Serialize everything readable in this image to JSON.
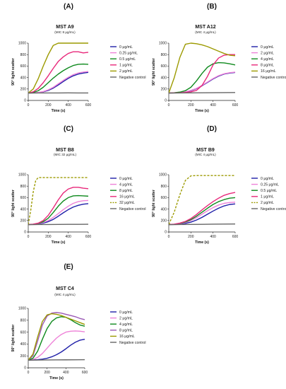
{
  "chart_data": [
    {
      "type": "line",
      "panel_label": "(A)",
      "title": "MST A9",
      "subtitle": "(MIC 8 μg/mL)",
      "xlabel": "Time (s)",
      "ylabel": "90° light scatter",
      "xlim": [
        0,
        600
      ],
      "ylim": [
        0,
        1000
      ],
      "xticks": [
        "0",
        "200",
        "400",
        "600"
      ],
      "yticks": [
        "0",
        "200",
        "400",
        "600",
        "800",
        "1000"
      ],
      "series": [
        {
          "name": "0 μg/mL",
          "color": "#1f1fa8",
          "dashed": false,
          "x": [
            0,
            50,
            100,
            150,
            200,
            250,
            300,
            350,
            400,
            450,
            500,
            550,
            600
          ],
          "y": [
            130,
            132,
            138,
            150,
            175,
            215,
            270,
            330,
            385,
            430,
            460,
            478,
            490
          ]
        },
        {
          "name": "0.25 μg/mL",
          "color": "#ee82d8",
          "dashed": false,
          "x": [
            0,
            50,
            100,
            150,
            200,
            250,
            300,
            350,
            400,
            450,
            500,
            550,
            600
          ],
          "y": [
            130,
            133,
            140,
            155,
            185,
            230,
            290,
            350,
            405,
            450,
            480,
            495,
            505
          ]
        },
        {
          "name": "0.5 μg/mL",
          "color": "#0f8a1e",
          "dashed": false,
          "x": [
            0,
            50,
            100,
            150,
            200,
            250,
            300,
            350,
            400,
            450,
            500,
            550,
            600
          ],
          "y": [
            130,
            140,
            170,
            230,
            310,
            390,
            460,
            520,
            570,
            610,
            630,
            635,
            630
          ]
        },
        {
          "name": "1 μg/mL",
          "color": "#e8287a",
          "dashed": false,
          "x": [
            0,
            50,
            100,
            150,
            200,
            250,
            300,
            350,
            400,
            450,
            500,
            550,
            600
          ],
          "y": [
            130,
            150,
            210,
            310,
            430,
            560,
            680,
            760,
            820,
            850,
            850,
            830,
            840
          ]
        },
        {
          "name": "2 μg/mL",
          "color": "#9c9a00",
          "dashed": false,
          "x": [
            0,
            50,
            100,
            150,
            200,
            250,
            300,
            350,
            400,
            450,
            500,
            550,
            600
          ],
          "y": [
            130,
            200,
            380,
            600,
            800,
            960,
            1000,
            1000,
            1000,
            1000,
            1000,
            1000,
            1000
          ]
        },
        {
          "name": "Negative control",
          "color": "#666666",
          "dashed": false,
          "x": [
            0,
            100,
            200,
            300,
            400,
            500,
            600
          ],
          "y": [
            128,
            130,
            131,
            130,
            132,
            131,
            130
          ]
        }
      ]
    },
    {
      "type": "line",
      "panel_label": "(B)",
      "title": "MST A12",
      "subtitle": "(MIC 4 μg/mL)",
      "xlabel": "Time (s)",
      "ylabel": "90° light scatter",
      "xlim": [
        0,
        600
      ],
      "ylim": [
        0,
        1000
      ],
      "xticks": [
        "0",
        "200",
        "400",
        "600"
      ],
      "yticks": [
        "0",
        "200",
        "400",
        "600",
        "800",
        "1000"
      ],
      "series": [
        {
          "name": "0 μg/mL",
          "color": "#1f1fa8",
          "dashed": false,
          "x": [
            0,
            50,
            100,
            150,
            200,
            250,
            300,
            350,
            400,
            450,
            500,
            550,
            600
          ],
          "y": [
            130,
            132,
            136,
            148,
            170,
            205,
            255,
            315,
            375,
            425,
            460,
            478,
            488
          ]
        },
        {
          "name": "2 μg/mL",
          "color": "#ee82d8",
          "dashed": false,
          "x": [
            0,
            50,
            100,
            150,
            200,
            250,
            300,
            350,
            400,
            450,
            500,
            550,
            600
          ],
          "y": [
            130,
            132,
            137,
            150,
            175,
            210,
            262,
            322,
            382,
            432,
            466,
            484,
            494
          ]
        },
        {
          "name": "4 μg/mL",
          "color": "#0f8a1e",
          "dashed": false,
          "x": [
            0,
            50,
            100,
            150,
            200,
            250,
            300,
            350,
            400,
            450,
            500,
            550,
            600
          ],
          "y": [
            130,
            135,
            145,
            170,
            230,
            340,
            470,
            580,
            640,
            660,
            655,
            640,
            620
          ]
        },
        {
          "name": "8 μg/mL",
          "color": "#e8287a",
          "dashed": false,
          "x": [
            0,
            50,
            100,
            150,
            200,
            250,
            300,
            350,
            400,
            450,
            500,
            550,
            600
          ],
          "y": [
            130,
            132,
            134,
            140,
            150,
            175,
            260,
            420,
            620,
            740,
            790,
            800,
            800
          ]
        },
        {
          "name": "16 μg/mL",
          "color": "#9c9a00",
          "dashed": false,
          "x": [
            0,
            50,
            100,
            150,
            200,
            250,
            300,
            350,
            400,
            450,
            500,
            550,
            600
          ],
          "y": [
            130,
            400,
            750,
            980,
            1000,
            990,
            970,
            940,
            900,
            860,
            820,
            790,
            780
          ]
        },
        {
          "name": "Negative control",
          "color": "#666666",
          "dashed": false,
          "x": [
            0,
            100,
            200,
            300,
            400,
            500,
            600
          ],
          "y": [
            128,
            130,
            132,
            133,
            135,
            137,
            138
          ]
        }
      ]
    },
    {
      "type": "line",
      "panel_label": "(C)",
      "title": "MST B8",
      "subtitle": "(MIC 32 μg/mL)",
      "xlabel": "Time (s)",
      "ylabel": "90° light scatter",
      "xlim": [
        0,
        600
      ],
      "ylim": [
        0,
        1000
      ],
      "xticks": [
        "0",
        "200",
        "400",
        "600"
      ],
      "yticks": [
        "0",
        "200",
        "400",
        "600",
        "800",
        "1000"
      ],
      "series": [
        {
          "name": "0 μg/mL",
          "color": "#1f1fa8",
          "dashed": false,
          "x": [
            0,
            50,
            100,
            150,
            200,
            250,
            300,
            350,
            400,
            450,
            500,
            550,
            600
          ],
          "y": [
            130,
            133,
            140,
            155,
            180,
            220,
            275,
            335,
            390,
            435,
            465,
            485,
            495
          ]
        },
        {
          "name": "4 μg/mL",
          "color": "#ee82d8",
          "dashed": false,
          "x": [
            0,
            50,
            100,
            150,
            200,
            250,
            300,
            350,
            400,
            450,
            500,
            550,
            600
          ],
          "y": [
            130,
            134,
            145,
            165,
            200,
            255,
            320,
            390,
            450,
            500,
            530,
            545,
            550
          ]
        },
        {
          "name": "8 μg/mL",
          "color": "#0f8a1e",
          "dashed": false,
          "x": [
            0,
            50,
            100,
            150,
            200,
            250,
            300,
            350,
            400,
            450,
            500,
            550,
            600
          ],
          "y": [
            130,
            135,
            150,
            180,
            240,
            340,
            450,
            540,
            600,
            630,
            635,
            630,
            625
          ]
        },
        {
          "name": "16 μg/mL",
          "color": "#e8287a",
          "dashed": false,
          "x": [
            0,
            50,
            100,
            150,
            200,
            250,
            300,
            350,
            400,
            450,
            500,
            550,
            600
          ],
          "y": [
            130,
            136,
            155,
            200,
            290,
            420,
            560,
            680,
            750,
            780,
            780,
            765,
            755
          ]
        },
        {
          "name": "32 μg/mL",
          "color": "#9c9a00",
          "dashed": true,
          "x": [
            0,
            25,
            50,
            75,
            100,
            150,
            200,
            300,
            400,
            500,
            600
          ],
          "y": [
            130,
            380,
            700,
            900,
            950,
            950,
            950,
            950,
            950,
            950,
            950
          ]
        },
        {
          "name": "Negative control",
          "color": "#666666",
          "dashed": false,
          "x": [
            0,
            100,
            200,
            300,
            400,
            500,
            600
          ],
          "y": [
            128,
            130,
            131,
            132,
            133,
            134,
            135
          ]
        }
      ]
    },
    {
      "type": "line",
      "panel_label": "(D)",
      "title": "MST B9",
      "subtitle": "(MIC 4 μg/mL)",
      "xlabel": "Time (s)",
      "ylabel": "90° light scatter",
      "xlim": [
        0,
        600
      ],
      "ylim": [
        0,
        1000
      ],
      "xticks": [
        "0",
        "200",
        "400",
        "600"
      ],
      "yticks": [
        "0",
        "200",
        "400",
        "600",
        "800",
        "1000"
      ],
      "series": [
        {
          "name": "0 μg/mL",
          "color": "#1f1fa8",
          "dashed": false,
          "x": [
            0,
            50,
            100,
            150,
            200,
            250,
            300,
            350,
            400,
            450,
            500,
            550,
            600
          ],
          "y": [
            130,
            132,
            138,
            150,
            172,
            208,
            255,
            310,
            365,
            415,
            455,
            480,
            490
          ]
        },
        {
          "name": "0.25 μg/mL",
          "color": "#ee82d8",
          "dashed": false,
          "x": [
            0,
            50,
            100,
            150,
            200,
            250,
            300,
            350,
            400,
            450,
            500,
            550,
            600
          ],
          "y": [
            130,
            134,
            145,
            165,
            200,
            250,
            310,
            370,
            425,
            470,
            500,
            515,
            520
          ]
        },
        {
          "name": "0.5 μg/mL",
          "color": "#0f8a1e",
          "dashed": false,
          "x": [
            0,
            50,
            100,
            150,
            200,
            250,
            300,
            350,
            400,
            450,
            500,
            550,
            600
          ],
          "y": [
            130,
            135,
            150,
            175,
            215,
            275,
            345,
            415,
            480,
            530,
            565,
            590,
            600
          ]
        },
        {
          "name": "1 μg/mL",
          "color": "#e8287a",
          "dashed": false,
          "x": [
            0,
            50,
            100,
            150,
            200,
            250,
            300,
            350,
            400,
            450,
            500,
            550,
            600
          ],
          "y": [
            130,
            136,
            155,
            185,
            235,
            305,
            385,
            460,
            530,
            590,
            640,
            670,
            690
          ]
        },
        {
          "name": "2 μg/mL",
          "color": "#9c9a00",
          "dashed": true,
          "x": [
            0,
            50,
            100,
            150,
            200,
            250,
            300,
            400,
            500,
            600
          ],
          "y": [
            130,
            350,
            650,
            900,
            980,
            985,
            985,
            985,
            985,
            985
          ]
        },
        {
          "name": "Negative control",
          "color": "#666666",
          "dashed": false,
          "x": [
            0,
            100,
            200,
            300,
            400,
            500,
            600
          ],
          "y": [
            128,
            130,
            132,
            134,
            136,
            138,
            140
          ]
        }
      ]
    },
    {
      "type": "line",
      "panel_label": "(E)",
      "title": "MST C4",
      "subtitle": "(MIC 4 μg/mL)",
      "xlabel": "Time (s)",
      "ylabel": "90° light scatter",
      "xlim": [
        0,
        600
      ],
      "ylim": [
        0,
        1000
      ],
      "xticks": [
        "0",
        "200",
        "400",
        "600"
      ],
      "yticks": [
        "0",
        "200",
        "400",
        "600",
        "800",
        "1000"
      ],
      "series": [
        {
          "name": "0 μg/mL",
          "color": "#1f1fa8",
          "dashed": false,
          "x": [
            0,
            50,
            100,
            150,
            200,
            250,
            300,
            350,
            400,
            450,
            500,
            550,
            600
          ],
          "y": [
            130,
            132,
            136,
            145,
            160,
            185,
            220,
            265,
            320,
            380,
            430,
            465,
            480
          ]
        },
        {
          "name": "2 μg/mL",
          "color": "#ee82d8",
          "dashed": false,
          "x": [
            0,
            50,
            100,
            150,
            200,
            250,
            300,
            350,
            400,
            450,
            500,
            550,
            600
          ],
          "y": [
            130,
            140,
            175,
            240,
            330,
            420,
            500,
            560,
            600,
            615,
            620,
            615,
            605
          ]
        },
        {
          "name": "4 μg/mL",
          "color": "#0f8a1e",
          "dashed": false,
          "x": [
            0,
            50,
            100,
            150,
            200,
            250,
            300,
            350,
            400,
            450,
            500,
            550,
            600
          ],
          "y": [
            130,
            160,
            280,
            480,
            660,
            780,
            840,
            860,
            850,
            810,
            760,
            720,
            700
          ]
        },
        {
          "name": "8 μg/mL",
          "color": "#9b59b6",
          "dashed": false,
          "x": [
            0,
            50,
            100,
            150,
            200,
            250,
            300,
            350,
            400,
            450,
            500,
            550,
            600
          ],
          "y": [
            130,
            200,
            450,
            720,
            870,
            920,
            930,
            920,
            900,
            880,
            860,
            830,
            810
          ]
        },
        {
          "name": "16 μg/mL",
          "color": "#9c9a00",
          "dashed": false,
          "x": [
            0,
            50,
            100,
            150,
            200,
            250,
            300,
            350,
            400,
            450,
            500,
            550,
            600
          ],
          "y": [
            130,
            230,
            520,
            780,
            890,
            910,
            900,
            880,
            850,
            820,
            790,
            760,
            730
          ]
        },
        {
          "name": "Negative control",
          "color": "#666666",
          "dashed": false,
          "x": [
            0,
            100,
            200,
            300,
            400,
            500,
            600
          ],
          "y": [
            128,
            130,
            132,
            133,
            134,
            135,
            136
          ]
        }
      ]
    }
  ]
}
